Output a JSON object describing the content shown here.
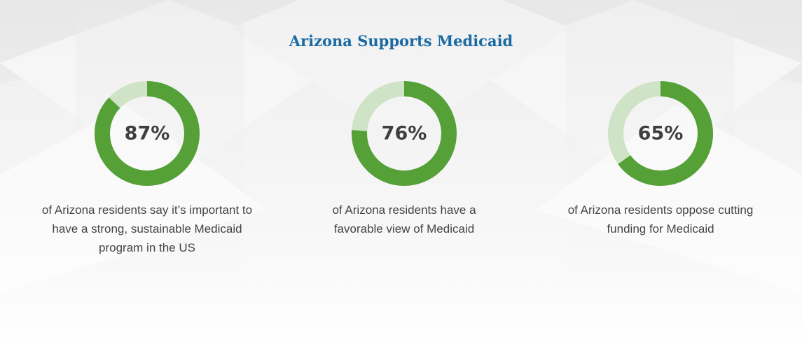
{
  "page": {
    "title": "Arizona Supports Medicaid"
  },
  "colors": {
    "title": "#1b6aa3",
    "ring_value": "#56a038",
    "ring_track": "#cfe3c6",
    "text": "#444444"
  },
  "chart_data": [
    {
      "type": "pie",
      "style": "donut",
      "value_percent": 87,
      "label": "87%",
      "caption_lines": [
        "of Arizona residents say it’s important to",
        "have a strong, sustainable Medicaid",
        "program in the US"
      ]
    },
    {
      "type": "pie",
      "style": "donut",
      "value_percent": 76,
      "label": "76%",
      "caption_lines": [
        "of Arizona residents have a",
        "favorable view of Medicaid"
      ]
    },
    {
      "type": "pie",
      "style": "donut",
      "value_percent": 65,
      "label": "65%",
      "caption_lines": [
        "of Arizona residents oppose cutting",
        "funding for Medicaid"
      ]
    }
  ]
}
